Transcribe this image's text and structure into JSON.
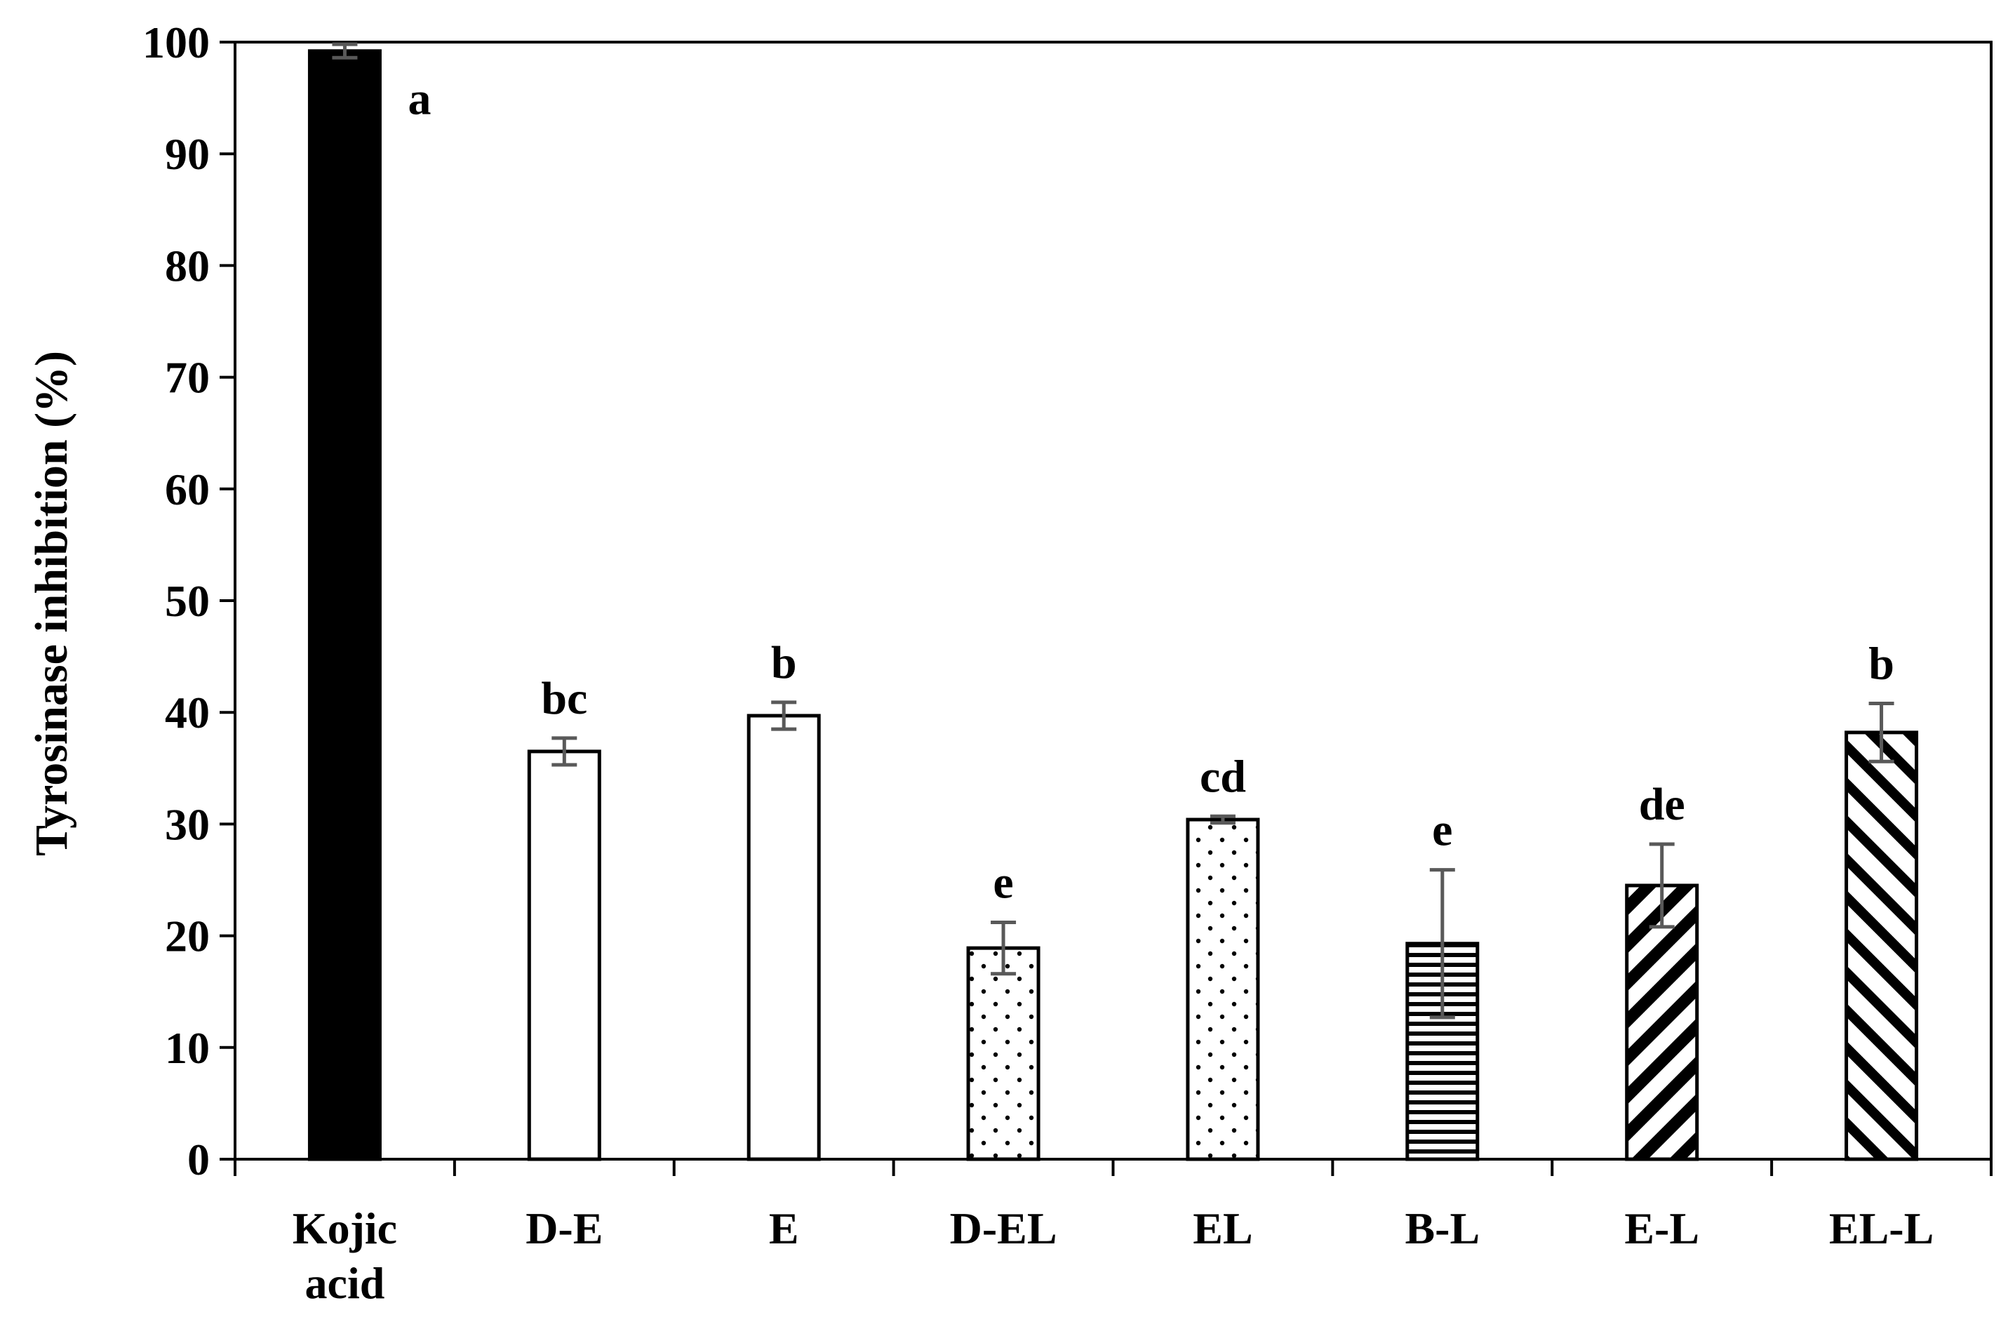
{
  "chart_data": {
    "type": "bar",
    "title": "",
    "xlabel": "",
    "ylabel": "Tyrosinase inhibition (%)",
    "ylim": [
      0,
      100
    ],
    "yticks": [
      0,
      10,
      20,
      30,
      40,
      50,
      60,
      70,
      80,
      90,
      100
    ],
    "grid": false,
    "legend": "none",
    "categories": [
      [
        "Kojic",
        "acid"
      ],
      [
        "D-E"
      ],
      [
        "E"
      ],
      [
        "D-EL"
      ],
      [
        "EL"
      ],
      [
        "B-L"
      ],
      [
        "E-L"
      ],
      [
        "EL-L"
      ]
    ],
    "values": [
      99.2,
      36.5,
      39.7,
      18.9,
      30.4,
      19.3,
      24.5,
      38.2
    ],
    "errors": [
      0.6,
      1.2,
      1.2,
      2.3,
      0.3,
      6.6,
      3.7,
      2.6
    ],
    "significance": [
      "a",
      "bc",
      "b",
      "e",
      "cd",
      "e",
      "de",
      "b"
    ],
    "fills": [
      "solid",
      "none",
      "none",
      "dots",
      "dots",
      "hlines",
      "diag-down",
      "diag-up"
    ],
    "colors": {
      "bar_stroke": "#000000",
      "solid_fill": "#000000",
      "error_bar": "#595959",
      "axis": "#000000"
    }
  }
}
